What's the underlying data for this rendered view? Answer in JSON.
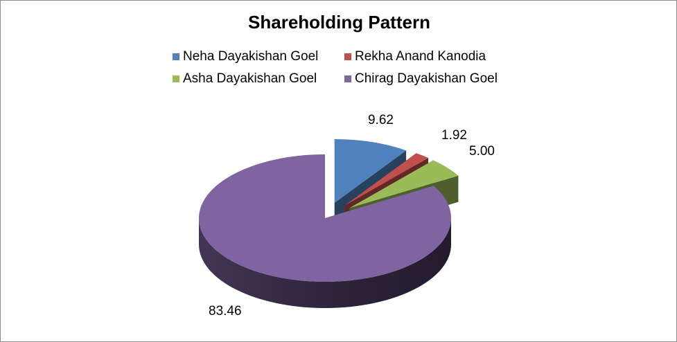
{
  "chart_data": {
    "type": "pie",
    "title": "Shareholding Pattern",
    "categories": [
      "Neha Dayakishan Goel",
      "Rekha Anand Kanodia",
      "Asha Dayakishan Goel",
      "Chirag Dayakishan Goel"
    ],
    "values": [
      9.62,
      1.92,
      5.0,
      83.46
    ],
    "data_labels": [
      "9.62",
      "1.92",
      "5.00",
      "83.46"
    ],
    "colors": [
      "#4f81bd",
      "#c0504d",
      "#9bbb59",
      "#8064a2"
    ],
    "legend": {
      "placement": "top"
    },
    "style": "3d-exploded"
  }
}
